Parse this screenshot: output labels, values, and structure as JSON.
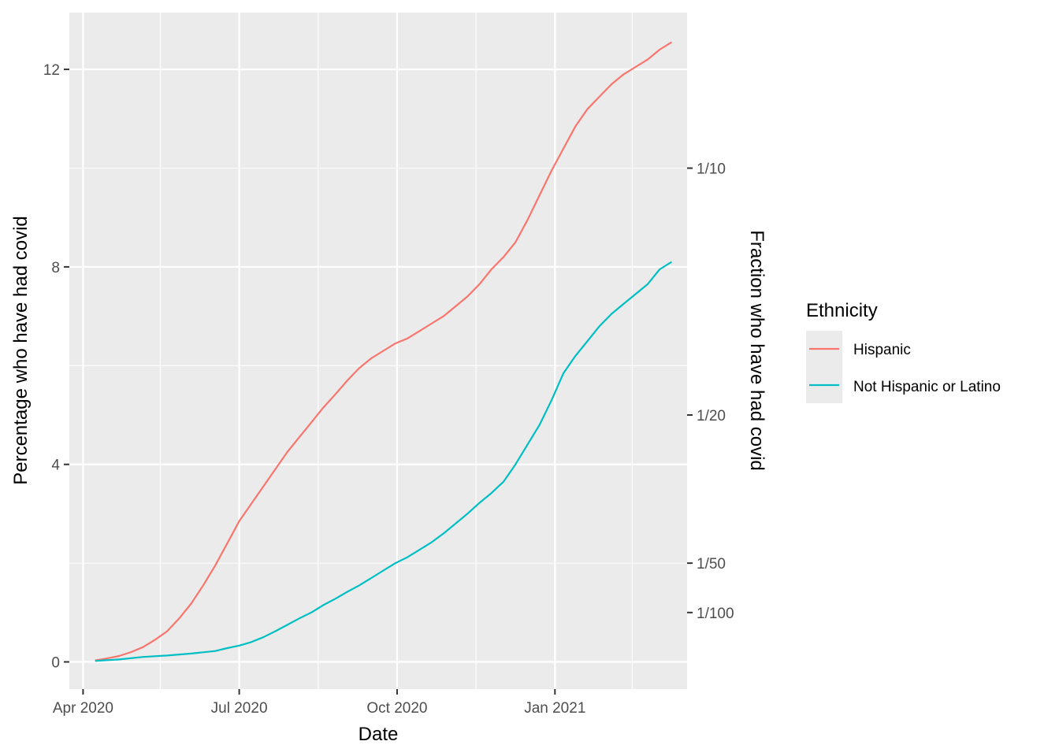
{
  "chart_data": {
    "type": "line",
    "xlabel": "Date",
    "ylabel": "Percentage who have had covid",
    "y2label": "Fraction who have had covid",
    "x_ticks": [
      {
        "date": "2020-04-01",
        "label": "Apr 2020"
      },
      {
        "date": "2020-07-01",
        "label": "Jul 2020"
      },
      {
        "date": "2020-10-01",
        "label": "Oct 2020"
      },
      {
        "date": "2021-01-01",
        "label": "Jan 2021"
      }
    ],
    "x_minor_ticks": [
      "2020-05-16",
      "2020-08-16",
      "2020-11-16",
      "2021-02-15"
    ],
    "xlim": [
      "2020-03-24",
      "2021-03-19"
    ],
    "y_ticks": [
      0,
      4,
      8,
      12
    ],
    "y_minor_ticks": [
      2,
      6,
      10
    ],
    "ylim": [
      -0.55,
      13.15
    ],
    "y2_ticks": [
      {
        "value": 10,
        "label": "1/10"
      },
      {
        "value": 5,
        "label": "1/20"
      },
      {
        "value": 2,
        "label": "1/50"
      },
      {
        "value": 1,
        "label": "1/100"
      }
    ],
    "grid": true,
    "legend": {
      "title": "Ethnicity",
      "position": "right"
    },
    "series": [
      {
        "name": "Hispanic",
        "color": "#f8766d",
        "points": [
          [
            "2020-04-08",
            0.03
          ],
          [
            "2020-04-15",
            0.07
          ],
          [
            "2020-04-22",
            0.12
          ],
          [
            "2020-04-29",
            0.2
          ],
          [
            "2020-05-06",
            0.3
          ],
          [
            "2020-05-13",
            0.45
          ],
          [
            "2020-05-20",
            0.62
          ],
          [
            "2020-05-27",
            0.88
          ],
          [
            "2020-06-03",
            1.18
          ],
          [
            "2020-06-10",
            1.55
          ],
          [
            "2020-06-17",
            1.95
          ],
          [
            "2020-06-24",
            2.4
          ],
          [
            "2020-07-01",
            2.85
          ],
          [
            "2020-07-08",
            3.2
          ],
          [
            "2020-07-15",
            3.55
          ],
          [
            "2020-07-22",
            3.9
          ],
          [
            "2020-07-29",
            4.25
          ],
          [
            "2020-08-05",
            4.55
          ],
          [
            "2020-08-12",
            4.85
          ],
          [
            "2020-08-19",
            5.15
          ],
          [
            "2020-08-26",
            5.42
          ],
          [
            "2020-09-02",
            5.7
          ],
          [
            "2020-09-09",
            5.95
          ],
          [
            "2020-09-16",
            6.15
          ],
          [
            "2020-09-23",
            6.3
          ],
          [
            "2020-09-30",
            6.45
          ],
          [
            "2020-10-07",
            6.55
          ],
          [
            "2020-10-14",
            6.7
          ],
          [
            "2020-10-21",
            6.85
          ],
          [
            "2020-10-28",
            7.0
          ],
          [
            "2020-11-04",
            7.2
          ],
          [
            "2020-11-11",
            7.4
          ],
          [
            "2020-11-18",
            7.65
          ],
          [
            "2020-11-25",
            7.95
          ],
          [
            "2020-12-02",
            8.2
          ],
          [
            "2020-12-09",
            8.5
          ],
          [
            "2020-12-16",
            8.95
          ],
          [
            "2020-12-23",
            9.45
          ],
          [
            "2020-12-30",
            9.95
          ],
          [
            "2021-01-06",
            10.4
          ],
          [
            "2021-01-13",
            10.85
          ],
          [
            "2021-01-20",
            11.2
          ],
          [
            "2021-01-27",
            11.45
          ],
          [
            "2021-02-03",
            11.7
          ],
          [
            "2021-02-10",
            11.9
          ],
          [
            "2021-02-17",
            12.05
          ],
          [
            "2021-02-24",
            12.2
          ],
          [
            "2021-03-03",
            12.4
          ],
          [
            "2021-03-10",
            12.55
          ]
        ]
      },
      {
        "name": "Not Hispanic or Latino",
        "color": "#00bfc4",
        "points": [
          [
            "2020-04-08",
            0.02
          ],
          [
            "2020-04-22",
            0.05
          ],
          [
            "2020-05-06",
            0.1
          ],
          [
            "2020-05-20",
            0.13
          ],
          [
            "2020-06-03",
            0.17
          ],
          [
            "2020-06-17",
            0.22
          ],
          [
            "2020-06-24",
            0.28
          ],
          [
            "2020-07-01",
            0.33
          ],
          [
            "2020-07-08",
            0.4
          ],
          [
            "2020-07-15",
            0.5
          ],
          [
            "2020-07-22",
            0.62
          ],
          [
            "2020-07-29",
            0.75
          ],
          [
            "2020-08-05",
            0.88
          ],
          [
            "2020-08-12",
            1.0
          ],
          [
            "2020-08-19",
            1.15
          ],
          [
            "2020-08-26",
            1.28
          ],
          [
            "2020-09-02",
            1.42
          ],
          [
            "2020-09-09",
            1.55
          ],
          [
            "2020-09-16",
            1.7
          ],
          [
            "2020-09-23",
            1.85
          ],
          [
            "2020-09-30",
            2.0
          ],
          [
            "2020-10-07",
            2.12
          ],
          [
            "2020-10-14",
            2.27
          ],
          [
            "2020-10-21",
            2.42
          ],
          [
            "2020-10-28",
            2.6
          ],
          [
            "2020-11-04",
            2.8
          ],
          [
            "2020-11-11",
            3.0
          ],
          [
            "2020-11-18",
            3.22
          ],
          [
            "2020-11-25",
            3.42
          ],
          [
            "2020-12-02",
            3.65
          ],
          [
            "2020-12-09",
            4.0
          ],
          [
            "2020-12-16",
            4.4
          ],
          [
            "2020-12-23",
            4.8
          ],
          [
            "2020-12-30",
            5.3
          ],
          [
            "2021-01-06",
            5.85
          ],
          [
            "2021-01-13",
            6.2
          ],
          [
            "2021-01-20",
            6.5
          ],
          [
            "2021-01-27",
            6.8
          ],
          [
            "2021-02-03",
            7.05
          ],
          [
            "2021-02-10",
            7.25
          ],
          [
            "2021-02-17",
            7.45
          ],
          [
            "2021-02-24",
            7.65
          ],
          [
            "2021-03-03",
            7.95
          ],
          [
            "2021-03-10",
            8.1
          ]
        ]
      }
    ]
  }
}
